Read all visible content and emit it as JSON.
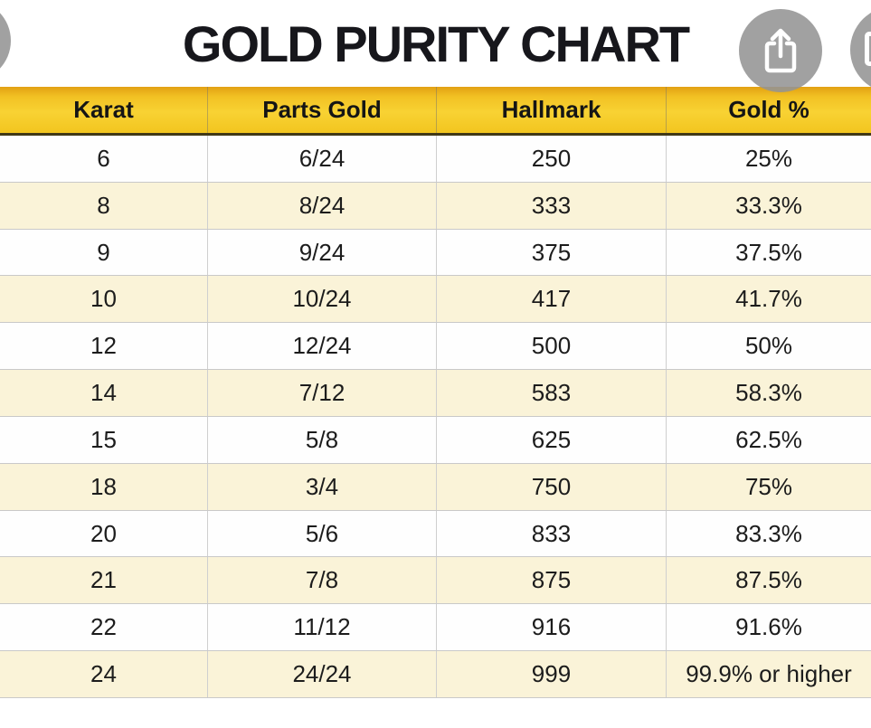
{
  "chart_data": {
    "type": "table",
    "title": "GOLD PURITY CHART",
    "columns": [
      "Karat",
      "Parts Gold",
      "Hallmark",
      "Gold %"
    ],
    "rows": [
      [
        "6",
        "6/24",
        "250",
        "25%"
      ],
      [
        "8",
        "8/24",
        "333",
        "33.3%"
      ],
      [
        "9",
        "9/24",
        "375",
        "37.5%"
      ],
      [
        "10",
        "10/24",
        "417",
        "41.7%"
      ],
      [
        "12",
        "12/24",
        "500",
        "50%"
      ],
      [
        "14",
        "7/12",
        "583",
        "58.3%"
      ],
      [
        "15",
        "5/8",
        "625",
        "62.5%"
      ],
      [
        "18",
        "3/4",
        "750",
        "75%"
      ],
      [
        "20",
        "5/6",
        "833",
        "83.3%"
      ],
      [
        "21",
        "7/8",
        "875",
        "87.5%"
      ],
      [
        "22",
        "11/12",
        "916",
        "91.6%"
      ],
      [
        "24",
        "24/24",
        "999",
        "99.9% or higher"
      ]
    ],
    "layout": {
      "header_position": "top",
      "row_striping": "white-cream alternating starting white",
      "grid": "light gray row and column dividers"
    }
  },
  "toolbar": {
    "share_icon": "share-export-up-arrow",
    "left_edge_button": "partial-circle-button",
    "right_edge_button": "partial-circle-button-with-rounded-rect-glyph"
  },
  "colors": {
    "header_gradient_top": "#e2a113",
    "header_gradient_mid": "#f8d233",
    "header_gradient_bottom": "#f2c51f",
    "header_bottom_border": "#403816",
    "row_cream": "#faf3d8",
    "row_white": "#fefefe",
    "grid_border": "#c9c9c9",
    "title_text": "#17171c",
    "cell_text": "#1c1c1c",
    "overlay_button_gray": "#949494",
    "overlay_icon": "#ffffff"
  }
}
